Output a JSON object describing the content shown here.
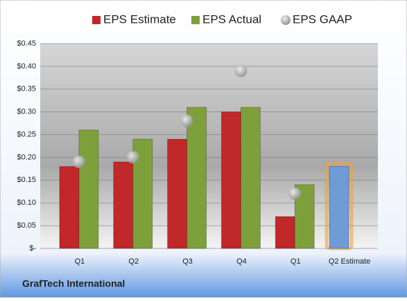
{
  "chart_data": {
    "type": "bar",
    "categories": [
      "Q1",
      "Q2",
      "Q3",
      "Q4",
      "Q1",
      "Q2 Estimate"
    ],
    "series": [
      {
        "name": "EPS Estimate",
        "color": "#c0282a",
        "colors": [
          "#c0282a",
          "#c0282a",
          "#c0282a",
          "#c0282a",
          "#c0282a",
          "#6f9bd6"
        ],
        "values": [
          0.18,
          0.19,
          0.24,
          0.3,
          0.07,
          0.18
        ]
      },
      {
        "name": "EPS Actual",
        "color": "#7ea03a",
        "values": [
          0.26,
          0.24,
          0.31,
          0.31,
          0.14,
          null
        ]
      },
      {
        "name": "EPS GAAP",
        "color": "#a8a8a8",
        "type": "scatter",
        "values": [
          0.19,
          0.2,
          0.28,
          0.39,
          0.12,
          null
        ]
      }
    ],
    "ylim": [
      0,
      0.45
    ],
    "yticks": [
      {
        "value": 0,
        "label": "$-"
      },
      {
        "value": 0.05,
        "label": "$0.05"
      },
      {
        "value": 0.1,
        "label": "$0.10"
      },
      {
        "value": 0.15,
        "label": "$0.15"
      },
      {
        "value": 0.2,
        "label": "$0.20"
      },
      {
        "value": 0.25,
        "label": "$0.25"
      },
      {
        "value": 0.3,
        "label": "$0.30"
      },
      {
        "value": 0.35,
        "label": "$0.35"
      },
      {
        "value": 0.4,
        "label": "$0.40"
      },
      {
        "value": 0.45,
        "label": "$0.45"
      }
    ],
    "grid": true,
    "legend": "top",
    "footer": "GrafTech International"
  }
}
